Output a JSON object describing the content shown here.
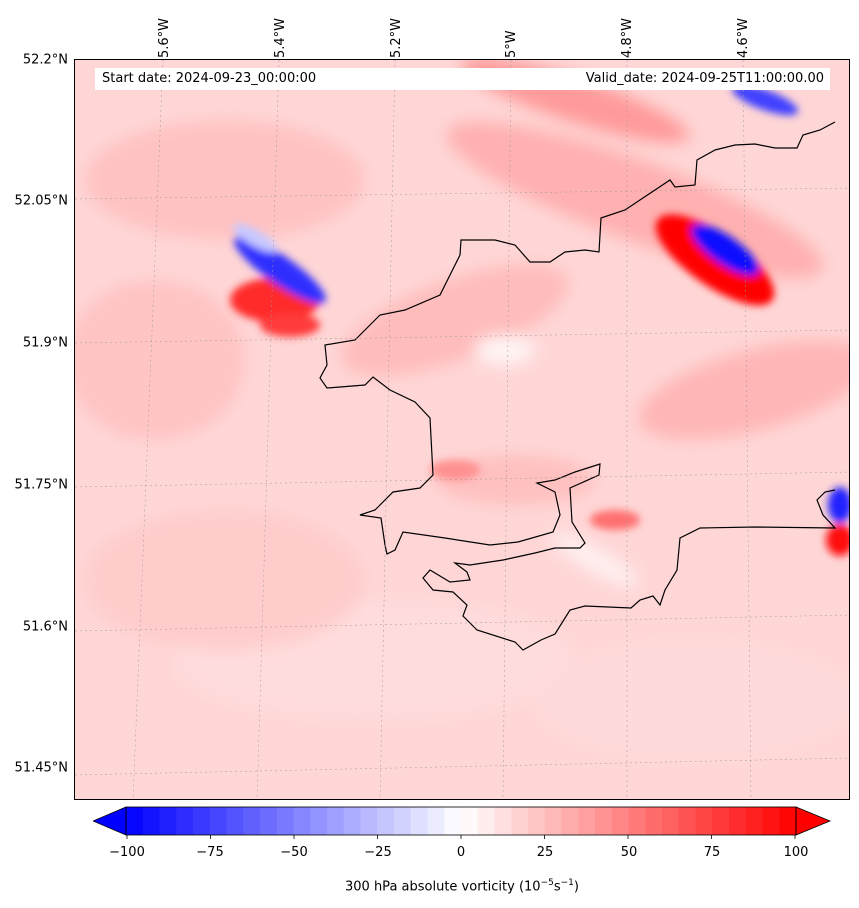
{
  "header": {
    "start_date": "Start date: 2024-09-23_00:00:00",
    "valid_date": "Valid_date: 2024-09-25T11:00:00.00"
  },
  "lon_labels": [
    "5.6°W",
    "5.4°W",
    "5.2°W",
    "5°W",
    "4.8°W",
    "4.6°W"
  ],
  "lat_labels": [
    "52.2°N",
    "52.05°N",
    "51.9°N",
    "51.75°N",
    "51.6°N",
    "51.45°N"
  ],
  "colorbar": {
    "ticks": [
      "−100",
      "−75",
      "−50",
      "−25",
      "0",
      "25",
      "50",
      "75",
      "100"
    ],
    "label": "300 hPa absolute vorticity (10",
    "label_exp1": "−5",
    "label_mid": "s",
    "label_exp2": "−1",
    "label_end": ")",
    "min": -100,
    "max": 100,
    "colors": {
      "low": "#0000ff",
      "mid": "#ffffff",
      "high": "#ff0000"
    }
  },
  "map": {
    "background_level": "light red (~15)",
    "coastline_color": "#000000"
  }
}
